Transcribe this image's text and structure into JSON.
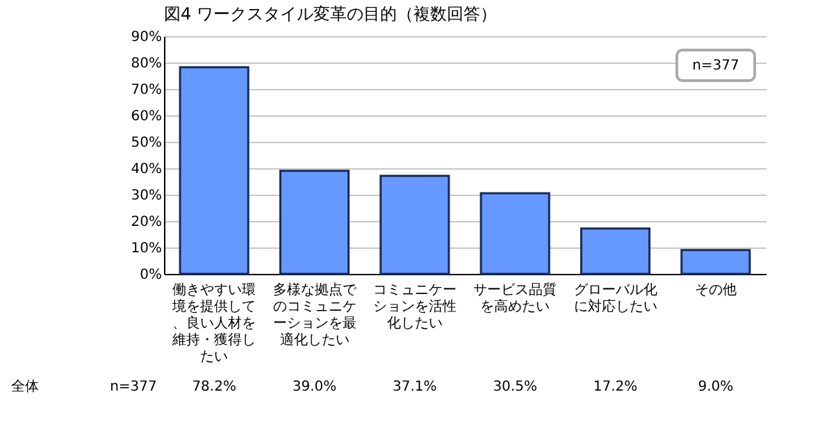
{
  "chart_data": {
    "type": "bar",
    "title": "図4 ワークスタイル変革の目的（複数回答）",
    "categories": [
      "働きやすい環境を提供して、良い人材を維持・獲得したい",
      "多様な拠点でのコミュニケーションを最適化したい",
      "コミュニケーションを活性化したい",
      "サービス品質を高めたい",
      "グローバル化に対応したい",
      "その他"
    ],
    "values": [
      78.2,
      39.0,
      37.1,
      30.5,
      17.2,
      9.0
    ],
    "value_labels": [
      "78.2%",
      "39.0%",
      "37.1%",
      "30.5%",
      "17.2%",
      "9.0%"
    ],
    "color": "#6699ff",
    "ylim": [
      0,
      90
    ],
    "yticks": [
      {
        "value": 0,
        "label": "0%"
      },
      {
        "value": 10,
        "label": "10%"
      },
      {
        "value": 20,
        "label": "20%"
      },
      {
        "value": 30,
        "label": "30%"
      },
      {
        "value": 40,
        "label": "40%"
      },
      {
        "value": 50,
        "label": "50%"
      },
      {
        "value": 60,
        "label": "60%"
      },
      {
        "value": 70,
        "label": "70%"
      },
      {
        "value": 80,
        "label": "80%"
      },
      {
        "value": 90,
        "label": "90%"
      }
    ],
    "grid": "y",
    "annotations": [
      "n=377",
      "全体",
      "n=377"
    ]
  }
}
